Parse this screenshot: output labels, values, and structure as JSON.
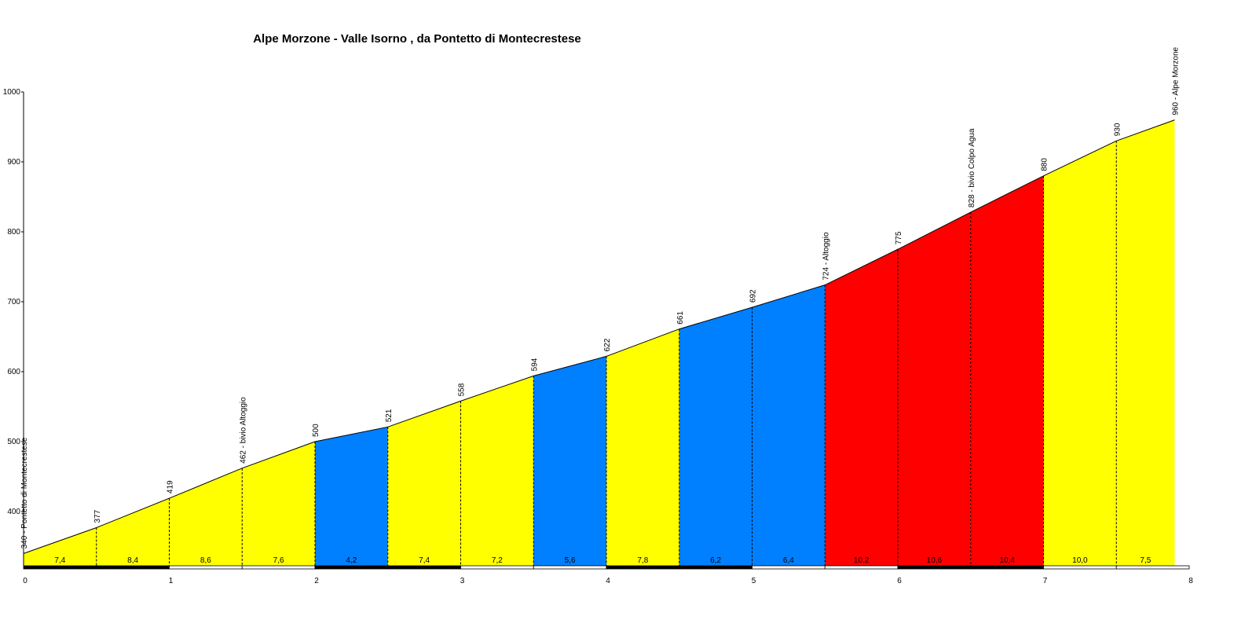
{
  "chart_data": {
    "type": "area",
    "title": "Alpe Morzone - Valle Isorno , da Pontetto di Montecrestese",
    "xlim": [
      0,
      8
    ],
    "ylim": [
      320,
      1000
    ],
    "x_ticks": [
      "0",
      "1",
      "2",
      "3",
      "4",
      "5",
      "6",
      "7",
      "8"
    ],
    "y_ticks": [
      "400",
      "500",
      "600",
      "700",
      "800",
      "900",
      "1000"
    ],
    "profile": [
      {
        "x": 0,
        "y": 340,
        "label": "340 - Pontetto di Montecrestese"
      },
      {
        "x": 0.5,
        "y": 377,
        "label": "377"
      },
      {
        "x": 1,
        "y": 419,
        "label": "419"
      },
      {
        "x": 1.5,
        "y": 462,
        "label": "462 - bivio Altoggio"
      },
      {
        "x": 2,
        "y": 500,
        "label": "500"
      },
      {
        "x": 2.5,
        "y": 521,
        "label": "521"
      },
      {
        "x": 3,
        "y": 558,
        "label": "558"
      },
      {
        "x": 3.5,
        "y": 594,
        "label": "594"
      },
      {
        "x": 4,
        "y": 622,
        "label": "622"
      },
      {
        "x": 4.5,
        "y": 661,
        "label": "661"
      },
      {
        "x": 5,
        "y": 692,
        "label": "692"
      },
      {
        "x": 5.5,
        "y": 724,
        "label": "724 - Altoggio"
      },
      {
        "x": 6,
        "y": 775,
        "label": "775"
      },
      {
        "x": 6.5,
        "y": 828,
        "label": "828 - bivio Colpo Agua"
      },
      {
        "x": 7,
        "y": 880,
        "label": "880"
      },
      {
        "x": 7.5,
        "y": 930,
        "label": "930"
      },
      {
        "x": 7.9,
        "y": 960,
        "label": "960 - Alpe Morzone"
      }
    ],
    "segments": [
      {
        "from": 0,
        "to": 0.5,
        "gradient": "7,4",
        "color": "#ffff00"
      },
      {
        "from": 0.5,
        "to": 1,
        "gradient": "8,4",
        "color": "#ffff00"
      },
      {
        "from": 1,
        "to": 1.5,
        "gradient": "8,6",
        "color": "#ffff00"
      },
      {
        "from": 1.5,
        "to": 2,
        "gradient": "7,6",
        "color": "#ffff00"
      },
      {
        "from": 2,
        "to": 2.5,
        "gradient": "4,2",
        "color": "#0080ff"
      },
      {
        "from": 2.5,
        "to": 3,
        "gradient": "7,4",
        "color": "#ffff00"
      },
      {
        "from": 3,
        "to": 3.5,
        "gradient": "7,2",
        "color": "#ffff00"
      },
      {
        "from": 3.5,
        "to": 4,
        "gradient": "5,6",
        "color": "#0080ff"
      },
      {
        "from": 4,
        "to": 4.5,
        "gradient": "7,8",
        "color": "#ffff00"
      },
      {
        "from": 4.5,
        "to": 5,
        "gradient": "6,2",
        "color": "#0080ff"
      },
      {
        "from": 5,
        "to": 5.5,
        "gradient": "6,4",
        "color": "#0080ff"
      },
      {
        "from": 5.5,
        "to": 6,
        "gradient": "10,2",
        "color": "#ff0000"
      },
      {
        "from": 6,
        "to": 6.5,
        "gradient": "10,6",
        "color": "#ff0000"
      },
      {
        "from": 6.5,
        "to": 7,
        "gradient": "10,4",
        "color": "#ff0000"
      },
      {
        "from": 7,
        "to": 7.5,
        "gradient": "10,0",
        "color": "#ffff00"
      },
      {
        "from": 7.5,
        "to": 7.9,
        "gradient": "7,5",
        "color": "#ffff00"
      }
    ],
    "colors": {
      "easy": "#0080ff",
      "medium": "#ffff00",
      "hard": "#ff0000"
    }
  }
}
